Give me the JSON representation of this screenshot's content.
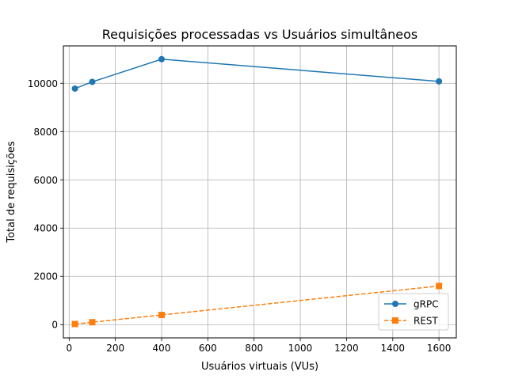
{
  "chart_data": {
    "type": "line",
    "title": "Requisições processadas vs Usuários simultâneos",
    "xlabel": "Usuários virtuais (VUs)",
    "ylabel": "Total de requisições",
    "xlim": [
      -25,
      1675
    ],
    "ylim": [
      -550,
      11550
    ],
    "xticks": [
      0,
      200,
      400,
      600,
      800,
      1000,
      1200,
      1400,
      1600
    ],
    "yticks": [
      0,
      2000,
      4000,
      6000,
      8000,
      10000
    ],
    "grid": true,
    "legend_position": "lower right",
    "series": [
      {
        "name": "gRPC",
        "x": [
          25,
          100,
          400,
          1600
        ],
        "values": [
          9780,
          10060,
          11000,
          10080
        ],
        "color": "#1f77b4",
        "marker": "circle",
        "linestyle": "solid"
      },
      {
        "name": "REST",
        "x": [
          25,
          100,
          400,
          1600
        ],
        "values": [
          25,
          100,
          400,
          1600
        ],
        "color": "#ff7f0e",
        "marker": "square",
        "linestyle": "dashed"
      }
    ]
  }
}
